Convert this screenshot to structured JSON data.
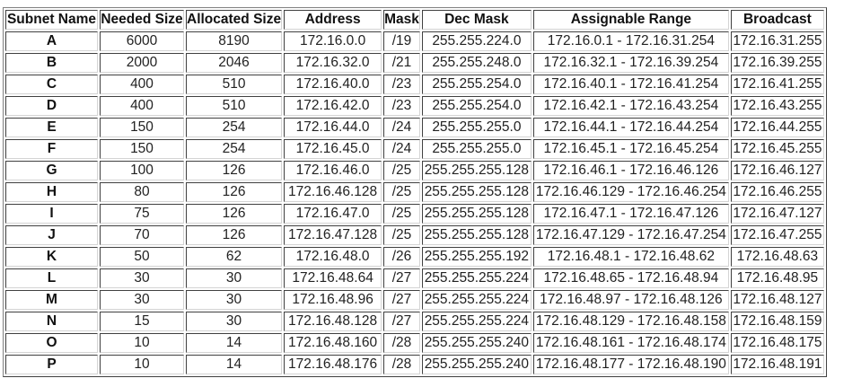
{
  "table": {
    "headers": [
      "Subnet Name",
      "Needed Size",
      "Allocated Size",
      "Address",
      "Mask",
      "Dec Mask",
      "Assignable Range",
      "Broadcast"
    ],
    "rows": [
      [
        "A",
        "6000",
        "8190",
        "172.16.0.0",
        "/19",
        "255.255.224.0",
        "172.16.0.1 - 172.16.31.254",
        "172.16.31.255"
      ],
      [
        "B",
        "2000",
        "2046",
        "172.16.32.0",
        "/21",
        "255.255.248.0",
        "172.16.32.1 - 172.16.39.254",
        "172.16.39.255"
      ],
      [
        "C",
        "400",
        "510",
        "172.16.40.0",
        "/23",
        "255.255.254.0",
        "172.16.40.1 - 172.16.41.254",
        "172.16.41.255"
      ],
      [
        "D",
        "400",
        "510",
        "172.16.42.0",
        "/23",
        "255.255.254.0",
        "172.16.42.1 - 172.16.43.254",
        "172.16.43.255"
      ],
      [
        "E",
        "150",
        "254",
        "172.16.44.0",
        "/24",
        "255.255.255.0",
        "172.16.44.1 - 172.16.44.254",
        "172.16.44.255"
      ],
      [
        "F",
        "150",
        "254",
        "172.16.45.0",
        "/24",
        "255.255.255.0",
        "172.16.45.1 - 172.16.45.254",
        "172.16.45.255"
      ],
      [
        "G",
        "100",
        "126",
        "172.16.46.0",
        "/25",
        "255.255.255.128",
        "172.16.46.1 - 172.16.46.126",
        "172.16.46.127"
      ],
      [
        "H",
        "80",
        "126",
        "172.16.46.128",
        "/25",
        "255.255.255.128",
        "172.16.46.129 - 172.16.46.254",
        "172.16.46.255"
      ],
      [
        "I",
        "75",
        "126",
        "172.16.47.0",
        "/25",
        "255.255.255.128",
        "172.16.47.1 - 172.16.47.126",
        "172.16.47.127"
      ],
      [
        "J",
        "70",
        "126",
        "172.16.47.128",
        "/25",
        "255.255.255.128",
        "172.16.47.129 - 172.16.47.254",
        "172.16.47.255"
      ],
      [
        "K",
        "50",
        "62",
        "172.16.48.0",
        "/26",
        "255.255.255.192",
        "172.16.48.1 - 172.16.48.62",
        "172.16.48.63"
      ],
      [
        "L",
        "30",
        "30",
        "172.16.48.64",
        "/27",
        "255.255.255.224",
        "172.16.48.65 - 172.16.48.94",
        "172.16.48.95"
      ],
      [
        "M",
        "30",
        "30",
        "172.16.48.96",
        "/27",
        "255.255.255.224",
        "172.16.48.97 - 172.16.48.126",
        "172.16.48.127"
      ],
      [
        "N",
        "15",
        "30",
        "172.16.48.128",
        "/27",
        "255.255.255.224",
        "172.16.48.129 - 172.16.48.158",
        "172.16.48.159"
      ],
      [
        "O",
        "10",
        "14",
        "172.16.48.160",
        "/28",
        "255.255.255.240",
        "172.16.48.161 - 172.16.48.174",
        "172.16.48.175"
      ],
      [
        "P",
        "10",
        "14",
        "172.16.48.176",
        "/28",
        "255.255.255.240",
        "172.16.48.177 - 172.16.48.190",
        "172.16.48.191"
      ]
    ]
  }
}
